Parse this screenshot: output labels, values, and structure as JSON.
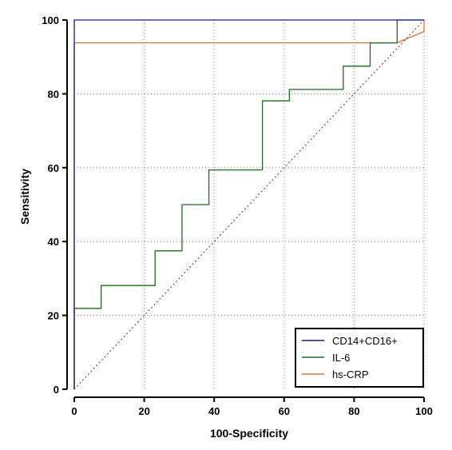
{
  "chart_data": {
    "type": "line",
    "xlabel": "100-Specificity",
    "ylabel": "Sensitivity",
    "xlim": [
      0,
      100
    ],
    "ylim": [
      0,
      100
    ],
    "xticks": [
      0,
      20,
      40,
      60,
      80,
      100
    ],
    "yticks": [
      0,
      20,
      40,
      60,
      80,
      100
    ],
    "grid": true,
    "legend_position": "bottom-right",
    "diagonal_reference": true,
    "diagonal_color": "#8b1a3a",
    "series": [
      {
        "name": "CD14+CD16+",
        "color": "#1a1a8c",
        "points": [
          [
            0,
            0
          ],
          [
            0,
            100
          ],
          [
            100,
            100
          ]
        ]
      },
      {
        "name": "IL-6",
        "color": "#1f6b1f",
        "points": [
          [
            0,
            0
          ],
          [
            0,
            21.9
          ],
          [
            7.7,
            21.9
          ],
          [
            7.7,
            28.1
          ],
          [
            23.1,
            28.1
          ],
          [
            23.1,
            37.5
          ],
          [
            30.8,
            37.5
          ],
          [
            30.8,
            50
          ],
          [
            38.5,
            50
          ],
          [
            38.5,
            59.4
          ],
          [
            53.8,
            59.4
          ],
          [
            53.8,
            78.1
          ],
          [
            61.5,
            78.1
          ],
          [
            61.5,
            81.2
          ],
          [
            76.9,
            81.2
          ],
          [
            76.9,
            87.5
          ],
          [
            84.6,
            87.5
          ],
          [
            84.6,
            93.8
          ],
          [
            92.3,
            93.8
          ],
          [
            92.3,
            100
          ],
          [
            100,
            100
          ]
        ]
      },
      {
        "name": "hs-CRP",
        "color": "#d9762b",
        "points": [
          [
            0,
            0
          ],
          [
            0,
            93.8
          ],
          [
            92.3,
            93.8
          ],
          [
            100,
            96.9
          ],
          [
            100,
            100
          ]
        ]
      }
    ]
  }
}
